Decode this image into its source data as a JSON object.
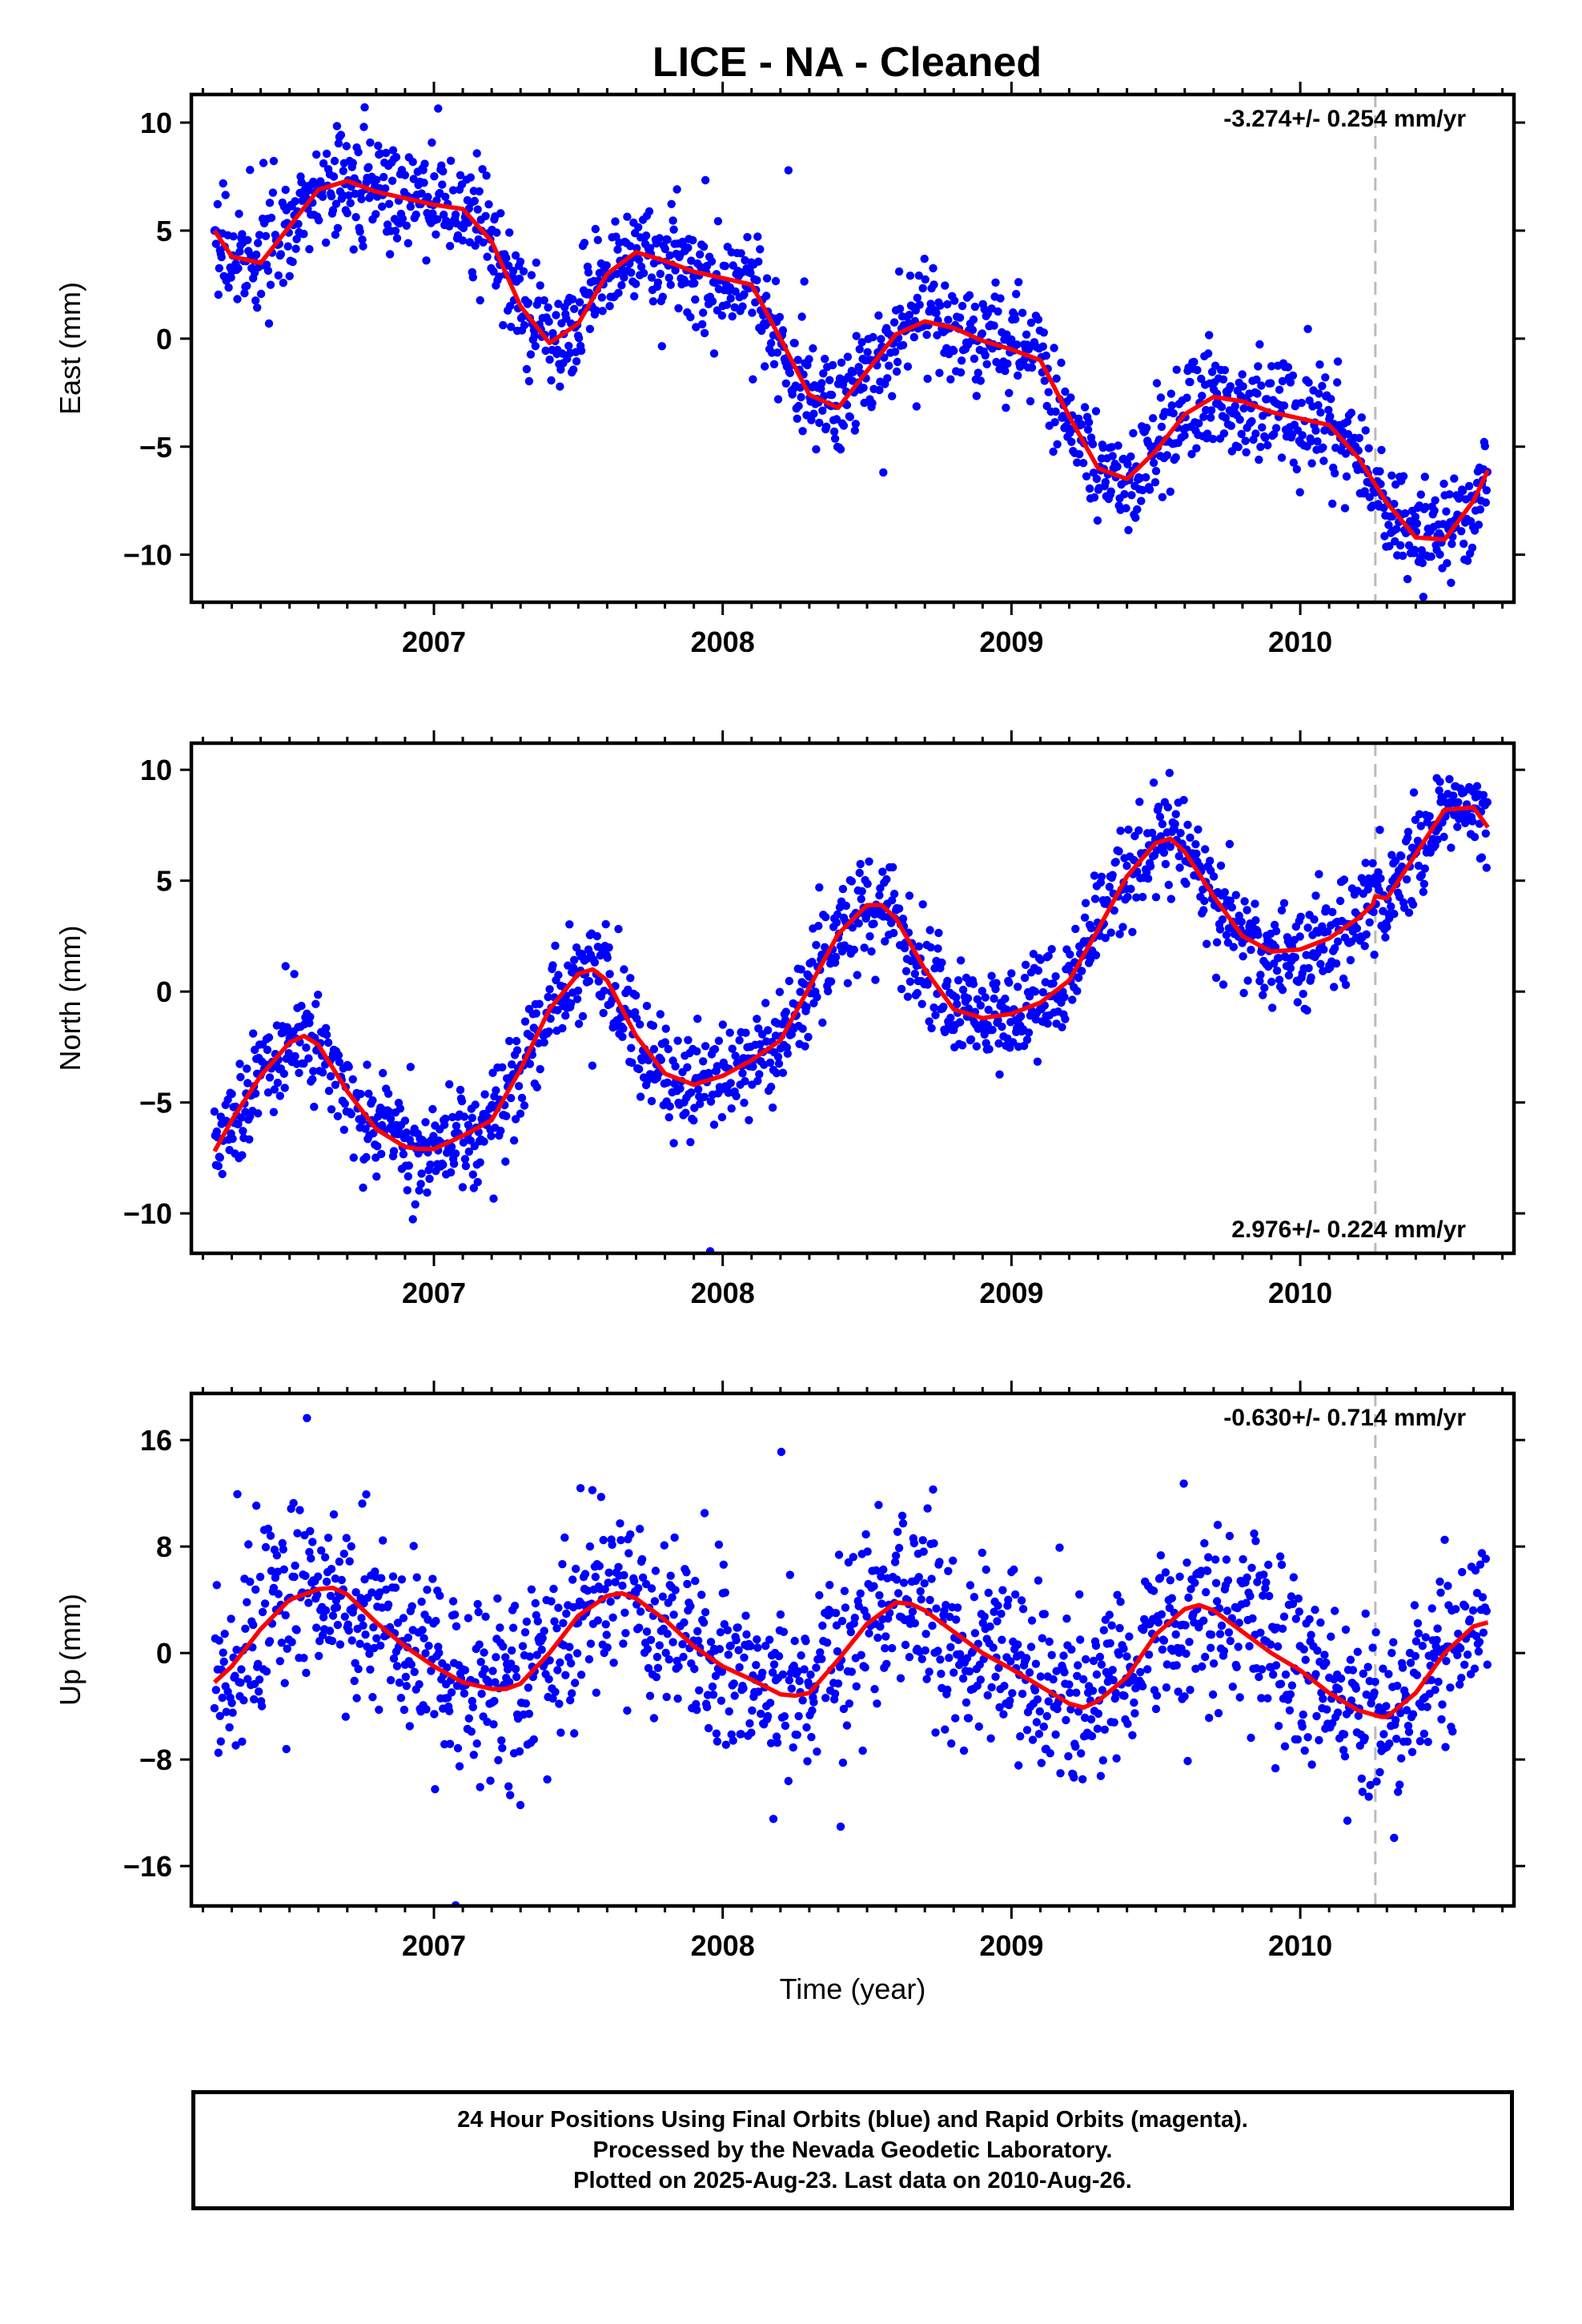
{
  "title": "LICE  - NA - Cleaned",
  "xlabel": "Time (year)",
  "footer": {
    "line1": "24 Hour Positions Using Final Orbits (blue) and Rapid Orbits (magenta).",
    "line2": "Processed by the Nevada Geodetic Laboratory.",
    "line3": "Plotted on 2025-Aug-23. Last data on 2010-Aug-26."
  },
  "colors": {
    "points": "#0000ff",
    "model": "#ff0000",
    "event_line": "#bbbbbb",
    "frame": "#000000"
  },
  "chart_data": [
    {
      "type": "scatter",
      "panel": "East",
      "ylabel": "East (mm)",
      "rate_label": "-3.274+/- 0.254 mm/yr",
      "rate_position": "top-right",
      "xlim": [
        2006.16,
        2010.74
      ],
      "ylim": [
        -12.2,
        11.3
      ],
      "yticks": [
        10,
        5,
        0,
        -5,
        -10
      ],
      "xticks": [
        2007,
        2008,
        2009,
        2010
      ],
      "event_line_x": 2010.26,
      "grid": false,
      "model_series": {
        "name": "",
        "x": [
          2006.24,
          2006.3,
          2006.4,
          2006.5,
          2006.6,
          2006.7,
          2006.8,
          2006.9,
          2007.0,
          2007.1,
          2007.2,
          2007.3,
          2007.4,
          2007.5,
          2007.6,
          2007.7,
          2007.8,
          2007.9,
          2008.0,
          2008.1,
          2008.2,
          2008.3,
          2008.4,
          2008.5,
          2008.6,
          2008.7,
          2008.8,
          2008.9,
          2009.0,
          2009.1,
          2009.2,
          2009.3,
          2009.4,
          2009.5,
          2009.6,
          2009.7,
          2009.8,
          2009.9,
          2010.0,
          2010.1,
          2010.2,
          2010.3,
          2010.4,
          2010.5,
          2010.6,
          2010.65
        ],
        "y": [
          5.0,
          3.8,
          3.5,
          5.2,
          6.9,
          7.3,
          6.8,
          6.5,
          6.2,
          6.0,
          4.5,
          1.5,
          -0.2,
          0.7,
          3.0,
          4.0,
          3.6,
          3.1,
          2.8,
          2.5,
          0.0,
          -2.6,
          -3.2,
          -1.5,
          0.2,
          0.8,
          0.5,
          -0.1,
          -0.5,
          -1.0,
          -3.6,
          -6.0,
          -6.5,
          -5.2,
          -3.5,
          -2.7,
          -2.9,
          -3.4,
          -3.7,
          -4.0,
          -5.5,
          -7.6,
          -9.2,
          -9.3,
          -7.5,
          -6.1
        ]
      },
      "scatter_noise_mm": 1.2
    },
    {
      "type": "scatter",
      "panel": "North",
      "ylabel": "North (mm)",
      "rate_label": "2.976+/- 0.224 mm/yr",
      "rate_position": "bottom-right",
      "xlim": [
        2006.16,
        2010.74
      ],
      "ylim": [
        -11.8,
        11.2
      ],
      "yticks": [
        10,
        5,
        0,
        -5,
        -10
      ],
      "xticks": [
        2007,
        2008,
        2009,
        2010
      ],
      "event_line_x": 2010.26,
      "grid": false,
      "model_series": {
        "name": "",
        "x": [
          2006.24,
          2006.3,
          2006.4,
          2006.5,
          2006.55,
          2006.6,
          2006.7,
          2006.8,
          2006.9,
          2006.95,
          2007.0,
          2007.1,
          2007.2,
          2007.3,
          2007.4,
          2007.5,
          2007.55,
          2007.6,
          2007.7,
          2007.8,
          2007.9,
          2008.0,
          2008.1,
          2008.2,
          2008.3,
          2008.4,
          2008.5,
          2008.55,
          2008.6,
          2008.7,
          2008.8,
          2008.9,
          2009.0,
          2009.1,
          2009.2,
          2009.3,
          2009.4,
          2009.5,
          2009.55,
          2009.6,
          2009.7,
          2009.8,
          2009.9,
          2010.0,
          2010.1,
          2010.2,
          2010.25,
          2010.26,
          2010.3,
          2010.4,
          2010.5,
          2010.6,
          2010.65
        ],
        "y": [
          -7.2,
          -5.8,
          -3.8,
          -2.3,
          -2.0,
          -2.4,
          -4.5,
          -6.2,
          -7.0,
          -7.1,
          -7.1,
          -6.5,
          -5.8,
          -3.5,
          -0.8,
          0.8,
          1.0,
          0.5,
          -2.0,
          -3.7,
          -4.2,
          -3.8,
          -3.1,
          -2.2,
          0.2,
          2.6,
          3.9,
          3.9,
          3.3,
          1.0,
          -0.8,
          -1.2,
          -1.0,
          -0.5,
          0.5,
          2.8,
          5.2,
          6.7,
          6.9,
          6.3,
          4.3,
          2.5,
          1.8,
          1.9,
          2.4,
          3.3,
          3.9,
          4.3,
          4.2,
          6.2,
          8.2,
          8.3,
          7.4
        ]
      },
      "scatter_noise_mm": 1.1
    },
    {
      "type": "scatter",
      "panel": "Up",
      "ylabel": "Up (mm)",
      "rate_label": "-0.630+/- 0.714 mm/yr",
      "rate_position": "top-right",
      "xlim": [
        2006.16,
        2010.74
      ],
      "ylim": [
        -19,
        19.5
      ],
      "yticks": [
        16,
        8,
        0,
        -8,
        -16
      ],
      "xticks": [
        2007,
        2008,
        2009,
        2010
      ],
      "event_line_x": 2010.26,
      "grid": false,
      "model_series": {
        "name": "",
        "x": [
          2006.24,
          2006.3,
          2006.4,
          2006.5,
          2006.6,
          2006.65,
          2006.7,
          2006.8,
          2006.9,
          2007.0,
          2007.1,
          2007.2,
          2007.25,
          2007.3,
          2007.4,
          2007.5,
          2007.6,
          2007.65,
          2007.7,
          2007.8,
          2007.9,
          2008.0,
          2008.1,
          2008.2,
          2008.25,
          2008.3,
          2008.4,
          2008.5,
          2008.6,
          2008.65,
          2008.7,
          2008.8,
          2008.9,
          2009.0,
          2009.1,
          2009.2,
          2009.25,
          2009.3,
          2009.4,
          2009.5,
          2009.6,
          2009.65,
          2009.7,
          2009.8,
          2009.9,
          2010.0,
          2010.1,
          2010.2,
          2010.28,
          2010.3,
          2010.4,
          2010.5,
          2010.6,
          2010.65
        ],
        "y": [
          -2.2,
          -1.0,
          1.8,
          4.0,
          4.8,
          4.9,
          4.4,
          2.3,
          0.5,
          -1.0,
          -2.2,
          -2.7,
          -2.7,
          -2.3,
          0.0,
          2.8,
          4.3,
          4.5,
          4.1,
          2.5,
          0.5,
          -1.0,
          -2.0,
          -3.1,
          -3.2,
          -3.0,
          -0.5,
          2.2,
          3.8,
          3.7,
          3.2,
          1.6,
          0.0,
          -1.2,
          -2.5,
          -3.8,
          -4.1,
          -3.6,
          -1.8,
          1.4,
          3.3,
          3.6,
          3.2,
          1.6,
          0.0,
          -1.3,
          -3.0,
          -4.3,
          -4.8,
          -4.8,
          -3.0,
          0.0,
          2.0,
          2.3
        ]
      },
      "scatter_noise_mm": 3.4
    }
  ]
}
